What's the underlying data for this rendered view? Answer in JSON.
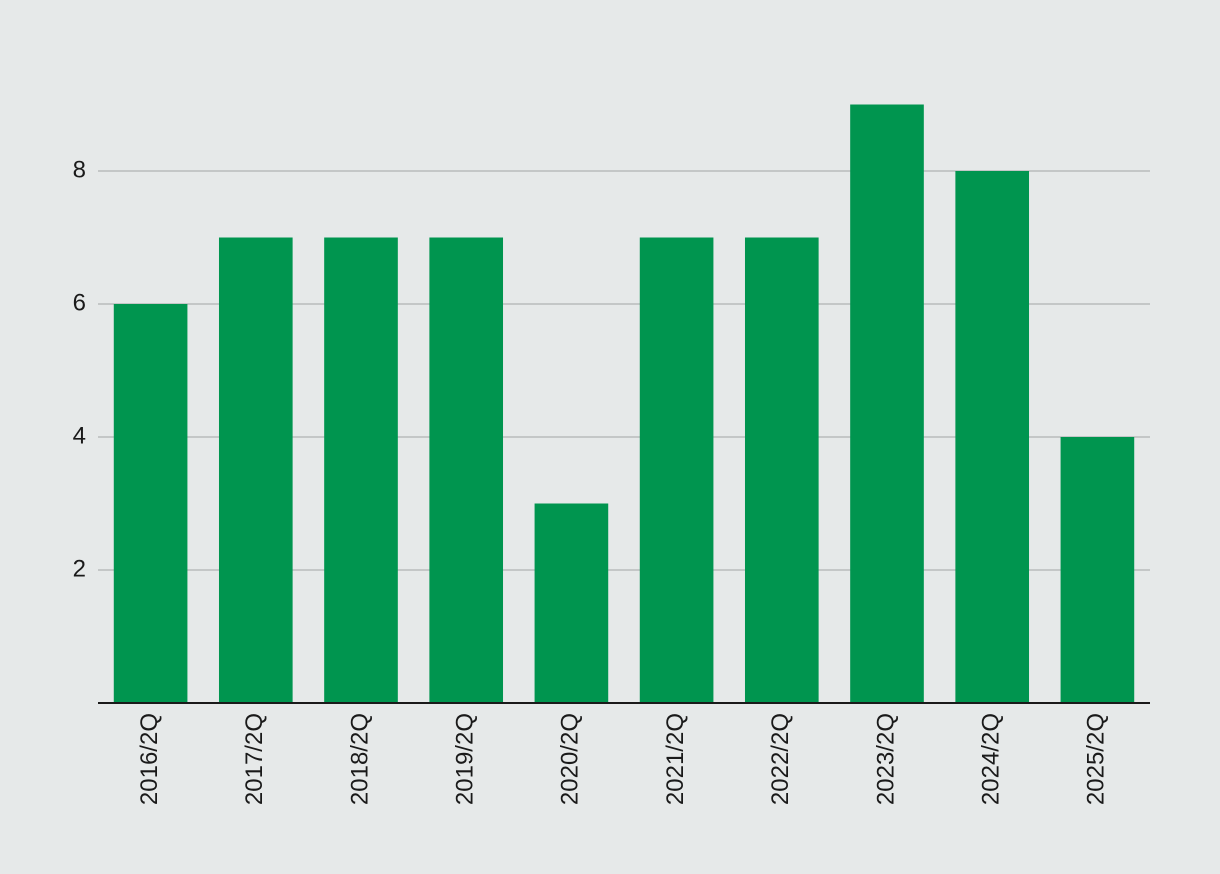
{
  "chart_data": {
    "type": "bar",
    "categories": [
      "2016/2Q",
      "2017/2Q",
      "2018/2Q",
      "2019/2Q",
      "2020/2Q",
      "2021/2Q",
      "2022/2Q",
      "2023/2Q",
      "2024/2Q",
      "2025/2Q"
    ],
    "values": [
      6,
      7,
      7,
      7,
      3,
      7,
      7,
      9,
      8,
      4
    ],
    "color": "#00954f",
    "ylim": [
      0,
      9.5
    ],
    "yticks": [
      2,
      4,
      6,
      8
    ],
    "grid": true
  }
}
